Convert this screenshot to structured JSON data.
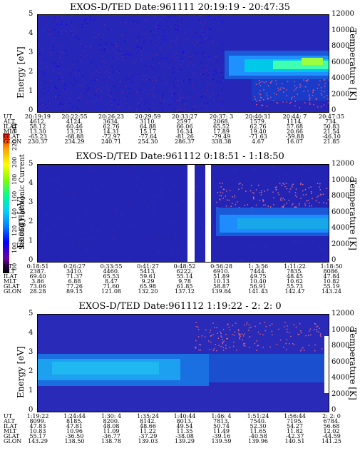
{
  "colorbar": {
    "label": "Second Harmonic Current",
    "ticks": [
      "240",
      "220",
      "200",
      "180",
      "160",
      "140",
      "120",
      "100",
      "80"
    ],
    "colors": [
      "#000000",
      "#6a00a8",
      "#0000ff",
      "#0080ff",
      "#00d0ff",
      "#00ff90",
      "#80ff00",
      "#ffff00",
      "#ffa000",
      "#ff0000"
    ]
  },
  "row_labels": [
    "UT",
    "ALT",
    "ILAT",
    "MLT",
    "GLAT",
    "GLON"
  ],
  "panels": [
    {
      "title": "EXOS-D/TED   Date:961111  20:19:19 - 20:47:35",
      "ylabel": "Energy [eV]",
      "y2label": "Temperature [K]",
      "eticks": [
        "5",
        "4",
        "3",
        "2",
        "1",
        "0"
      ],
      "tticks": [
        "12000",
        "10000",
        "8000",
        "6000",
        "4000",
        "2000",
        "0"
      ],
      "rows": [
        [
          "20:19:19",
          "20:22:55",
          "20:26:23",
          "20:29:59",
          "20:33:27",
          "20:37: 3",
          "20:40:31",
          "20:44: 7",
          "20:47:35"
        ],
        [
          "4612.",
          "4124.",
          "3634.",
          "3110.",
          "2597.",
          "2068.",
          "1579.",
          "1114.",
          "734."
        ],
        [
          "58.12",
          "60.46",
          "62.76",
          "64.88",
          "66.06",
          "65.52",
          "62.76",
          "57.68",
          "50.83"
        ],
        [
          "13.30",
          "13.73",
          "14.31",
          "15.17",
          "16.34",
          "17.89",
          "19.40",
          "20.66",
          "21.54"
        ],
        [
          "-65.23",
          "-68.88",
          "-72.97",
          "-77.64",
          "-81.26",
          "-79.49",
          "-71.63",
          "-59.88",
          "-46.10"
        ],
        [
          "230.37",
          "234.29",
          "240.71",
          "254.30",
          "286.37",
          "338.38",
          "4.67",
          "16.07",
          "21.85"
        ]
      ]
    },
    {
      "title": "EXOS-D/TED   Date:961112  0:18:51 - 1:18:50",
      "ylabel": "Energy [eV]",
      "y2label": "Temperature [K]",
      "eticks": [
        "5",
        "4",
        "3",
        "2",
        "1",
        "0"
      ],
      "tticks": [
        "12000",
        "10000",
        "8000",
        "6000",
        "4000",
        "2000",
        "0"
      ],
      "rows": [
        [
          "0:18:51",
          "0:26:27",
          "0:33:55",
          "0:41:27",
          "0:48:52",
          "0:56:28",
          "1: 3:56",
          "1:11:22",
          "1:18:50"
        ],
        [
          "2387.",
          "3410.",
          "4460.",
          "5413.",
          "6222.",
          "6910.",
          "7444.",
          "7835.",
          "8086."
        ],
        [
          "69.40",
          "71.37",
          "65.53",
          "59.61",
          "55.14",
          "51.89",
          "49.75",
          "48.45",
          "47.84"
        ],
        [
          "3.86",
          "6.88",
          "8.47",
          "9.29",
          "9.78",
          "10.13",
          "10.40",
          "10.62",
          "10.82"
        ],
        [
          "73.06",
          "77.26",
          "71.60",
          "65.98",
          "61.85",
          "58.87",
          "56.91",
          "55.73",
          "55.19"
        ],
        [
          "28.28",
          "89.15",
          "121.08",
          "132.20",
          "137.12",
          "139.84",
          "141.43",
          "142.47",
          "143.24"
        ]
      ]
    },
    {
      "title": "EXOS-D/TED   Date:961112  1:19:22 - 2: 2: 0",
      "ylabel": "Energy [eV]",
      "y2label": "Temperature [K]",
      "eticks": [
        "5",
        "4",
        "3",
        "2",
        "1",
        "0"
      ],
      "tticks": [
        "12000",
        "10000",
        "8000",
        "6000",
        "4000",
        "2000",
        "0"
      ],
      "rows": [
        [
          "1:19:22",
          "1:24:44",
          "1:30: 4",
          "1:35:24",
          "1:40:44",
          "1:46: 4",
          "1:51:24",
          "1:56:44",
          "2: 2: 0"
        ],
        [
          "8099.",
          "8185.",
          "8200.",
          "8142.",
          "8013.",
          "7813.",
          "7540.",
          "7195.",
          "6784."
        ],
        [
          "47.83",
          "47.81",
          "48.08",
          "48.66",
          "49.54",
          "50.74",
          "52.30",
          "54.27",
          "56.68"
        ],
        [
          "10.83",
          "10.96",
          "11.09",
          "11.22",
          "11.35",
          "11.49",
          "11.65",
          "11.82",
          "12.02"
        ],
        [
          "55.17",
          "-36.50",
          "-36.77",
          "-37.29",
          "-38.08",
          "-39.16",
          "-40.58",
          "-42.37",
          "-44.59"
        ],
        [
          "143.29",
          "138.50",
          "138.78",
          "139.03",
          "139.29",
          "139.59",
          "139.96",
          "140.51",
          "141.25"
        ]
      ]
    }
  ],
  "chart_data": [
    {
      "type": "heatmap",
      "title": "EXOS-D/TED   Date:961111  20:19:19 - 20:47:35",
      "xlabel": "UT",
      "ylabel": "Energy [eV]",
      "y2label": "Temperature [K]",
      "ylim": [
        0,
        5
      ],
      "y2lim": [
        0,
        12000
      ],
      "x": [
        "20:19:19",
        "20:22:55",
        "20:26:23",
        "20:29:59",
        "20:33:27",
        "20:37: 3",
        "20:40:31",
        "20:44: 7",
        "20:47:35"
      ],
      "color_scale": [
        80,
        240
      ]
    },
    {
      "type": "heatmap",
      "title": "EXOS-D/TED   Date:961112  0:18:51 - 1:18:50",
      "xlabel": "UT",
      "ylabel": "Energy [eV]",
      "y2label": "Temperature [K]",
      "ylim": [
        0,
        5
      ],
      "y2lim": [
        0,
        12000
      ],
      "x": [
        "0:18:51",
        "0:26:27",
        "0:33:55",
        "0:41:27",
        "0:48:52",
        "0:56:28",
        "1: 3:56",
        "1:11:22",
        "1:18:50"
      ],
      "color_scale": [
        80,
        240
      ]
    },
    {
      "type": "heatmap",
      "title": "EXOS-D/TED   Date:961112  1:19:22 - 2: 2: 0",
      "xlabel": "UT",
      "ylabel": "Energy [eV]",
      "y2label": "Temperature [K]",
      "ylim": [
        0,
        5
      ],
      "y2lim": [
        0,
        12000
      ],
      "x": [
        "1:19:22",
        "1:24:44",
        "1:30: 4",
        "1:35:24",
        "1:40:44",
        "1:46: 4",
        "1:51:24",
        "1:56:44",
        "2: 2: 0"
      ],
      "color_scale": [
        80,
        240
      ]
    }
  ]
}
